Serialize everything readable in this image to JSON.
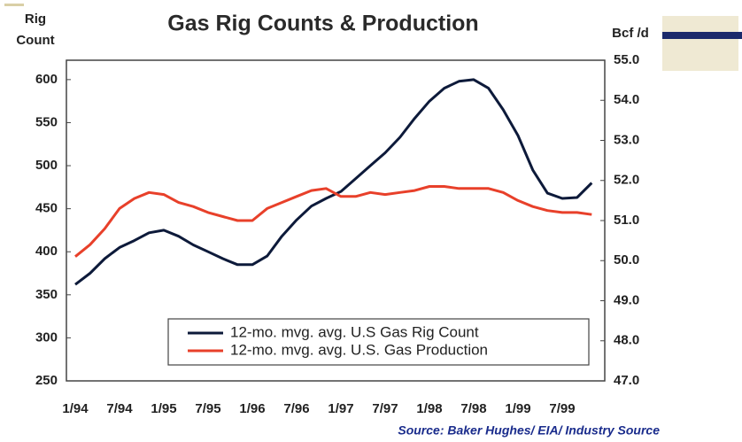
{
  "chart_data": {
    "type": "line",
    "title": "Gas Rig Counts & Production",
    "y_label": [
      "Rig",
      "Count"
    ],
    "y2_label": "Bcf /d",
    "source": "Source:  Baker Hughes/ EIA/ Industry Source",
    "categories": [
      "1/94",
      null,
      null,
      "7/94",
      null,
      null,
      "1/95",
      null,
      null,
      "7/95",
      null,
      null,
      "1/96",
      null,
      null,
      "7/96",
      null,
      null,
      "1/97",
      null,
      null,
      "7/97",
      null,
      null,
      "1/98",
      null,
      null,
      "7/98",
      null,
      null,
      "1/99",
      null,
      null,
      "7/99",
      null,
      null
    ],
    "series": [
      {
        "name": "12-mo. mvg. avg. U.S Gas Rig Count",
        "color": "#0d1a3a",
        "axis": "y",
        "values": [
          362,
          375,
          392,
          405,
          413,
          422,
          425,
          418,
          408,
          400,
          392,
          385,
          385,
          395,
          418,
          437,
          453,
          462,
          470,
          485,
          500,
          515,
          533,
          555,
          575,
          590,
          598,
          600,
          590,
          565,
          535,
          495,
          468,
          462,
          463,
          480
        ]
      },
      {
        "name": "12-mo. mvg. avg. U.S. Gas Production",
        "color": "#e8402a",
        "axis": "y2",
        "values": [
          50.1,
          50.4,
          50.8,
          51.3,
          51.55,
          51.7,
          51.65,
          51.45,
          51.35,
          51.2,
          51.1,
          51.0,
          51.0,
          51.3,
          51.45,
          51.6,
          51.75,
          51.8,
          51.6,
          51.6,
          51.7,
          51.65,
          51.7,
          51.75,
          51.85,
          51.85,
          51.8,
          51.8,
          51.8,
          51.7,
          51.5,
          51.35,
          51.25,
          51.2,
          51.2,
          51.15
        ]
      }
    ],
    "ylim": [
      250,
      622.5
    ],
    "yticks": [
      250,
      300,
      350,
      400,
      450,
      500,
      550,
      600
    ],
    "y2lim": [
      47,
      55
    ],
    "y2ticks": [
      {
        "value": 47,
        "label": "47.0"
      },
      {
        "value": 48,
        "label": "48.0"
      },
      {
        "value": 49,
        "label": "49.0"
      },
      {
        "value": 50,
        "label": "50.0"
      },
      {
        "value": 51,
        "label": "51.0"
      },
      {
        "value": 52,
        "label": "52.0"
      },
      {
        "value": 53,
        "label": "53.0"
      },
      {
        "value": 54,
        "label": "54.0"
      },
      {
        "value": 55,
        "label": "55.0"
      }
    ],
    "grid": false,
    "legend": "lower right"
  }
}
